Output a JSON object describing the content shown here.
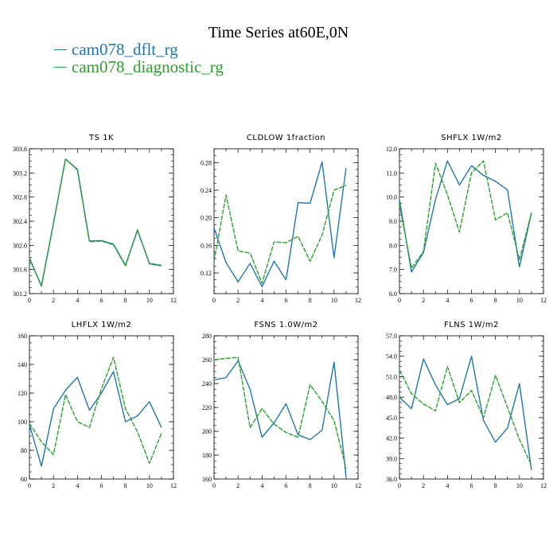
{
  "page": {
    "title": "Time Series at60E,0N",
    "legend": [
      {
        "label": "cam078_dflt_rg",
        "color": "#1f77b4"
      },
      {
        "label": "cam078_diagnostic_rg",
        "color": "#2ca02c"
      }
    ]
  },
  "chart_data": [
    {
      "type": "line",
      "title": "TS   1K",
      "x": [
        0,
        1,
        2,
        3,
        4,
        5,
        6,
        7,
        8,
        9,
        10,
        11
      ],
      "xlim": [
        0,
        12
      ],
      "xticks": [
        "0",
        "2",
        "4",
        "6",
        "8",
        "10",
        "12"
      ],
      "ylim": [
        301.2,
        303.6
      ],
      "yticks": [
        "301.2",
        "301.6",
        "302.0",
        "302.4",
        "302.8",
        "303.2",
        "303.6"
      ],
      "series": [
        {
          "name": "cam078_dflt_rg",
          "color": "#1f77b4",
          "dashed": false,
          "values": [
            301.78,
            301.33,
            302.37,
            303.43,
            303.26,
            302.07,
            302.08,
            302.02,
            301.67,
            302.25,
            301.7,
            301.67
          ]
        },
        {
          "name": "cam078_diagnostic_rg",
          "color": "#2ca02c",
          "dashed": true,
          "values": [
            301.8,
            301.32,
            302.36,
            303.43,
            303.25,
            302.06,
            302.07,
            302.01,
            301.66,
            302.26,
            301.69,
            301.66
          ]
        }
      ]
    },
    {
      "type": "line",
      "title": "CLDLOW   1fraction",
      "x": [
        0,
        1,
        2,
        3,
        4,
        5,
        6,
        7,
        8,
        9,
        10,
        11
      ],
      "xlim": [
        0,
        12
      ],
      "xticks": [
        "0",
        "2",
        "4",
        "6",
        "8",
        "10",
        "12"
      ],
      "ylim": [
        0.09,
        0.3
      ],
      "yticks": [
        "0.12",
        "0.16",
        "0.20",
        "0.24",
        "0.28"
      ],
      "series": [
        {
          "name": "cam078_dflt_rg",
          "color": "#1f77b4",
          "dashed": false,
          "values": [
            0.185,
            0.135,
            0.107,
            0.134,
            0.1,
            0.137,
            0.11,
            0.222,
            0.221,
            0.281,
            0.142,
            0.272
          ]
        },
        {
          "name": "cam078_diagnostic_rg",
          "color": "#2ca02c",
          "dashed": true,
          "values": [
            0.137,
            0.233,
            0.152,
            0.149,
            0.105,
            0.165,
            0.164,
            0.173,
            0.137,
            0.175,
            0.24,
            0.247
          ]
        }
      ]
    },
    {
      "type": "line",
      "title": "SHFLX   1W/m2",
      "x": [
        0,
        1,
        2,
        3,
        4,
        5,
        6,
        7,
        8,
        9,
        10,
        11
      ],
      "xlim": [
        0,
        12
      ],
      "xticks": [
        "0",
        "2",
        "4",
        "6",
        "8",
        "10",
        "12"
      ],
      "ylim": [
        6.0,
        12.0
      ],
      "yticks": [
        "6.0",
        "7.0",
        "8.0",
        "9.0",
        "10.0",
        "11.0",
        "12.0"
      ],
      "series": [
        {
          "name": "cam078_dflt_rg",
          "color": "#1f77b4",
          "dashed": false,
          "values": [
            9.9,
            6.9,
            7.7,
            9.9,
            11.5,
            10.5,
            11.3,
            10.9,
            10.65,
            10.3,
            7.1,
            9.35
          ]
        },
        {
          "name": "cam078_diagnostic_rg",
          "color": "#2ca02c",
          "dashed": true,
          "values": [
            9.7,
            7.05,
            7.75,
            11.4,
            10.1,
            8.55,
            11.0,
            11.5,
            9.05,
            9.35,
            7.4,
            9.35
          ]
        }
      ]
    },
    {
      "type": "line",
      "title": "LHFLX   1W/m2",
      "x": [
        0,
        1,
        2,
        3,
        4,
        5,
        6,
        7,
        8,
        9,
        10,
        11
      ],
      "xlim": [
        0,
        12
      ],
      "xticks": [
        "0",
        "2",
        "4",
        "6",
        "8",
        "10",
        "12"
      ],
      "ylim": [
        60,
        160
      ],
      "yticks": [
        "60",
        "80",
        "100",
        "120",
        "140",
        "160"
      ],
      "series": [
        {
          "name": "cam078_dflt_rg",
          "color": "#1f77b4",
          "dashed": false,
          "values": [
            98,
            69,
            109,
            122,
            131,
            108,
            120,
            135,
            100,
            104,
            114,
            96
          ]
        },
        {
          "name": "cam078_diagnostic_rg",
          "color": "#2ca02c",
          "dashed": true,
          "values": [
            99,
            86,
            77,
            119,
            100,
            96,
            123,
            145,
            109,
            93,
            71,
            92
          ]
        }
      ]
    },
    {
      "type": "line",
      "title": "FSNS   1.0W/m2",
      "x": [
        0,
        1,
        2,
        3,
        4,
        5,
        6,
        7,
        8,
        9,
        10,
        11
      ],
      "xlim": [
        0,
        12
      ],
      "xticks": [
        "0",
        "2",
        "4",
        "6",
        "8",
        "10",
        "12"
      ],
      "ylim": [
        160,
        280
      ],
      "yticks": [
        "160",
        "180",
        "200",
        "220",
        "240",
        "260",
        "280"
      ],
      "series": [
        {
          "name": "cam078_dflt_rg",
          "color": "#1f77b4",
          "dashed": false,
          "values": [
            243,
            245,
            259,
            235,
            195,
            207,
            223,
            197,
            193,
            201,
            258,
            162
          ]
        },
        {
          "name": "cam078_diagnostic_rg",
          "color": "#2ca02c",
          "dashed": true,
          "values": [
            260,
            261,
            262,
            203,
            219,
            206,
            199,
            195,
            239,
            225,
            209,
            169
          ]
        }
      ]
    },
    {
      "type": "line",
      "title": "FLNS   1W/m2",
      "x": [
        0,
        1,
        2,
        3,
        4,
        5,
        6,
        7,
        8,
        9,
        10,
        11
      ],
      "xlim": [
        0,
        12
      ],
      "xticks": [
        "0",
        "2",
        "4",
        "6",
        "8",
        "10",
        "12"
      ],
      "ylim": [
        36.0,
        57.0
      ],
      "yticks": [
        "36.0",
        "39.0",
        "42.0",
        "45.0",
        "48.0",
        "51.0",
        "54.0",
        "57.0"
      ],
      "series": [
        {
          "name": "cam078_dflt_rg",
          "color": "#1f77b4",
          "dashed": false,
          "values": [
            48.0,
            46.3,
            53.6,
            49.8,
            46.9,
            47.8,
            54.0,
            44.6,
            41.4,
            43.5,
            50.0,
            37.3
          ]
        },
        {
          "name": "cam078_diagnostic_rg",
          "color": "#2ca02c",
          "dashed": true,
          "values": [
            52.0,
            48.5,
            47.0,
            46.0,
            52.5,
            47.2,
            49.0,
            45.0,
            51.2,
            46.5,
            41.8,
            38.0
          ]
        }
      ]
    }
  ]
}
